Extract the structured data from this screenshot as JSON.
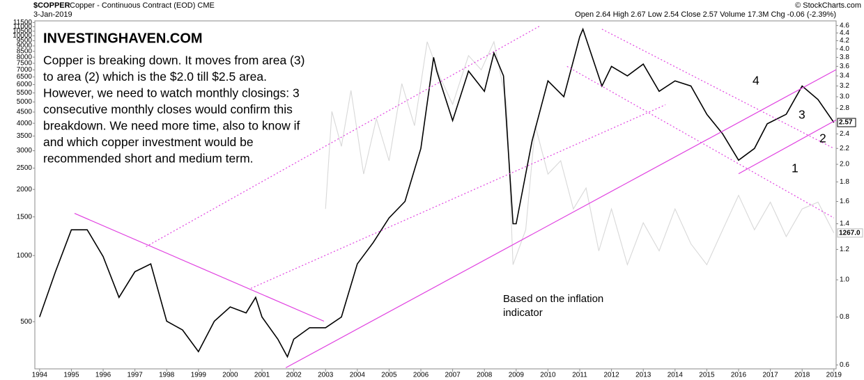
{
  "chart_data": {
    "type": "line",
    "symbol": "$COPPER",
    "subtitle": "Copper - Continuous Contract (EOD) CME",
    "date": "3-Jan-2019",
    "quote": "Open 2.64 High 2.67 Low 2.54 Close 2.57 Volume 17.3M Chg -0.06 (-2.39%)",
    "credit": "© StockCharts.com",
    "brand": "INVESTINGHAVEN.COM",
    "text_lines": [
      "Copper is breaking down. It moves from area (3)",
      "to area (2) which is the $2.0 till $2.5 area.",
      "However, we need to watch monthly closings: 3",
      "consecutive monthly closes would confirm this",
      "breakdown. We need more time, also to know if",
      "and which copper investment would be",
      "recommended short and medium term."
    ],
    "annotations": [
      "4",
      "3",
      "2",
      "1"
    ],
    "indicator_note": [
      "Based on the inflation",
      "indicator"
    ],
    "log_scale": true,
    "xlim": [
      1993.85,
      2019.07
    ],
    "xticks": [
      1994,
      1995,
      1996,
      1997,
      1998,
      1999,
      2000,
      2001,
      2002,
      2003,
      2004,
      2005,
      2006,
      2007,
      2008,
      2009,
      2010,
      2011,
      2012,
      2013,
      2014,
      2015,
      2016,
      2017,
      2018,
      2019
    ],
    "ylim": [
      305,
      11700
    ],
    "yticks": [
      500,
      1000,
      1500,
      2000,
      2500,
      3000,
      3500,
      4000,
      4500,
      5000,
      5500,
      6000,
      6500,
      7000,
      7500,
      8000,
      8500,
      9000,
      9500,
      10000,
      10500,
      11000,
      11500
    ],
    "y2lim": [
      0.586,
      4.73
    ],
    "y2ticks": [
      0.6,
      0.8,
      {
        "value": 1,
        "label": "1.0"
      },
      1.2,
      1.4,
      1.6,
      1.8,
      {
        "value": 2,
        "label": "2.0"
      },
      2.2,
      2.4,
      2.8,
      {
        "value": 3,
        "label": "3.0"
      },
      3.2,
      3.4,
      3.6,
      3.8,
      {
        "value": 4,
        "label": "4.0"
      },
      4.2,
      4.4,
      4.6
    ],
    "series": [
      {
        "name": "Inflation indicator",
        "color": "#d8d8d8",
        "last_label": "1267.0",
        "x": [
          2003.0,
          2003.2,
          2003.5,
          2003.8,
          2004.2,
          2004.6,
          2005.0,
          2005.4,
          2005.8,
          2006.2,
          2006.6,
          2007.0,
          2007.5,
          2007.9,
          2008.3,
          2008.7,
          2008.9,
          2009.3,
          2009.6,
          2010.0,
          2010.4,
          2010.8,
          2011.2,
          2011.6,
          2012.0,
          2012.5,
          2013.0,
          2013.5,
          2014.0,
          2014.5,
          2015.0,
          2015.5,
          2016.0,
          2016.5,
          2017.0,
          2017.5,
          2018.0,
          2018.5,
          2019.0
        ],
        "values": [
          1630,
          4530,
          3140,
          5640,
          2350,
          4200,
          2700,
          6060,
          3900,
          9400,
          6500,
          4880,
          8130,
          7000,
          9400,
          4880,
          909,
          1310,
          3900,
          2350,
          2700,
          1630,
          2030,
          1050,
          1630,
          909,
          1410,
          1050,
          1630,
          1130,
          909,
          1310,
          1880,
          1310,
          1750,
          1220,
          1630,
          1750,
          1267
        ]
      },
      {
        "name": "Copper",
        "color": "#000000",
        "axis": "y2",
        "last_label": "2.57",
        "x": [
          1994.0,
          1994.5,
          1995.0,
          1995.5,
          1996.0,
          1996.5,
          1997.0,
          1997.5,
          1998.0,
          1998.5,
          1999.0,
          1999.5,
          2000.0,
          2000.5,
          2000.8,
          2001.0,
          2001.5,
          2001.8,
          2002.0,
          2002.5,
          2003.0,
          2003.5,
          2004.0,
          2004.5,
          2005.0,
          2005.5,
          2006.0,
          2006.4,
          2006.5,
          2007.0,
          2007.5,
          2008.0,
          2008.3,
          2008.6,
          2008.9,
          2009.0,
          2009.5,
          2010.0,
          2010.5,
          2011.0,
          2011.1,
          2011.7,
          2012.0,
          2012.5,
          2013.0,
          2013.5,
          2014.0,
          2014.5,
          2015.0,
          2015.5,
          2016.0,
          2016.5,
          2016.9,
          2017.5,
          2018.0,
          2018.5,
          2019.0
        ],
        "values": [
          0.8,
          1.05,
          1.35,
          1.35,
          1.15,
          0.9,
          1.05,
          1.1,
          0.78,
          0.74,
          0.65,
          0.78,
          0.85,
          0.82,
          0.9,
          0.8,
          0.7,
          0.63,
          0.7,
          0.75,
          0.75,
          0.8,
          1.1,
          1.25,
          1.45,
          1.6,
          2.2,
          3.8,
          3.5,
          2.6,
          3.5,
          3.1,
          3.9,
          3.4,
          1.4,
          1.4,
          2.3,
          3.3,
          3.0,
          4.3,
          4.5,
          3.2,
          3.6,
          3.4,
          3.65,
          3.1,
          3.3,
          3.2,
          2.7,
          2.4,
          2.05,
          2.2,
          2.55,
          2.7,
          3.2,
          2.95,
          2.57
        ]
      }
    ],
    "trendlines": [
      {
        "style": "solid",
        "x": [
          1995.1,
          2002.95
        ],
        "y": [
          1.49,
          0.78
        ]
      },
      {
        "style": "solid",
        "x": [
          2001.75,
          2019.07
        ],
        "y": [
          0.59,
          3.53
        ]
      },
      {
        "style": "solid",
        "x": [
          2016.0,
          2019.07
        ],
        "y": [
          1.89,
          2.61
        ]
      },
      {
        "style": "dotted",
        "x": [
          1997.35,
          2009.75
        ],
        "y": [
          1.22,
          4.59
        ]
      },
      {
        "style": "dotted",
        "x": [
          2000.65,
          2013.7
        ],
        "y": [
          0.95,
          2.86
        ]
      },
      {
        "style": "dotted",
        "x": [
          2011.7,
          2019.0
        ],
        "y": [
          4.5,
          2.2
        ]
      },
      {
        "style": "dotted",
        "x": [
          2010.6,
          2019.0
        ],
        "y": [
          3.6,
          1.45
        ]
      }
    ],
    "trend_color": "#e040e0"
  }
}
